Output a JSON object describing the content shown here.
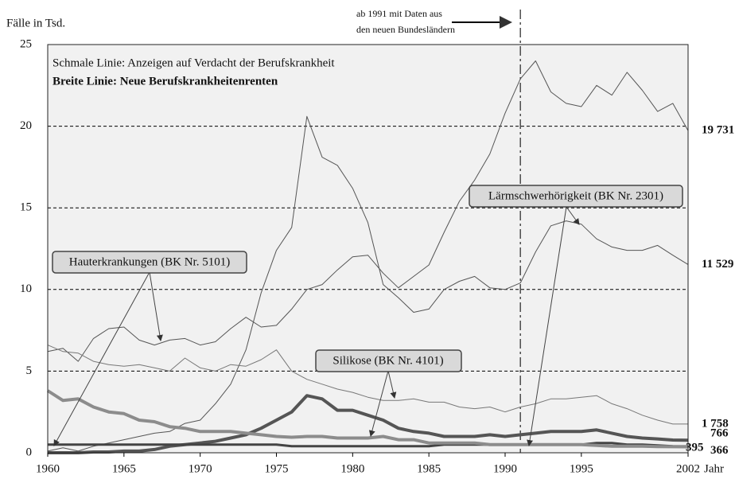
{
  "chart_data": {
    "type": "line",
    "y_label": "Fälle in Tsd.",
    "x_label": "Jahr",
    "legend_thin": "Schmale Linie: Anzeigen auf Verdacht der Berufskrankheit",
    "legend_thick": "Breite Linie: Neue Berufskrankheitenrenten",
    "note_line1": "ab 1991 mit Daten aus",
    "note_line2": "den neuen Bundesländern",
    "note_x": 1991,
    "annotations": [
      "Hauterkrankungen (BK Nr. 5101)",
      "Lärmschwerhörigkeit (BK Nr. 2301)",
      "Silikose (BK Nr. 4101)"
    ],
    "x": [
      1960,
      1961,
      1962,
      1963,
      1964,
      1965,
      1966,
      1967,
      1968,
      1969,
      1970,
      1971,
      1972,
      1973,
      1974,
      1975,
      1976,
      1977,
      1978,
      1979,
      1980,
      1981,
      1982,
      1983,
      1984,
      1985,
      1986,
      1987,
      1988,
      1989,
      1990,
      1991,
      1992,
      1993,
      1994,
      1995,
      1996,
      1997,
      1998,
      1999,
      2000,
      2001,
      2002
    ],
    "xlim": [
      1960,
      2002
    ],
    "xticks": [
      1960,
      1965,
      1970,
      1975,
      1980,
      1985,
      1990,
      1995,
      2002
    ],
    "ylim": [
      0,
      25
    ],
    "yticks": [
      0,
      5,
      10,
      15,
      20,
      25
    ],
    "grid": true,
    "series": [
      {
        "color": "#555555",
        "width": 1,
        "end_label": "19 731",
        "values": [
          6.2,
          6.4,
          5.6,
          7.0,
          7.6,
          7.7,
          6.9,
          6.6,
          6.9,
          7.0,
          6.6,
          6.8,
          7.6,
          8.3,
          7.7,
          7.8,
          8.8,
          10.0,
          10.3,
          11.2,
          12.0,
          12.1,
          11.0,
          10.1,
          10.8,
          11.5,
          13.5,
          15.4,
          16.7,
          18.3,
          20.8,
          22.9,
          24.0,
          22.1,
          21.4,
          21.2,
          22.5,
          21.9,
          23.3,
          22.2,
          20.9,
          21.4,
          19.731
        ]
      },
      {
        "color": "#555555",
        "width": 1,
        "end_label": "11 529",
        "values": [
          0.1,
          0.3,
          0.1,
          0.4,
          0.6,
          0.8,
          1.0,
          1.2,
          1.3,
          1.8,
          2.0,
          3.0,
          4.2,
          6.3,
          9.8,
          12.4,
          13.8,
          20.6,
          18.1,
          17.6,
          16.2,
          14.1,
          10.3,
          9.5,
          8.6,
          8.8,
          10.0,
          10.5,
          10.8,
          10.1,
          10.0,
          10.4,
          12.3,
          13.9,
          14.2,
          14.0,
          13.1,
          12.6,
          12.4,
          12.4,
          12.7,
          12.1,
          11.529
        ]
      },
      {
        "color": "#777777",
        "width": 1,
        "end_label": "1 758",
        "values": [
          6.6,
          6.2,
          6.1,
          5.6,
          5.4,
          5.3,
          5.4,
          5.2,
          5.0,
          5.8,
          5.2,
          5.0,
          5.4,
          5.3,
          5.7,
          6.3,
          5.0,
          4.5,
          4.2,
          3.9,
          3.7,
          3.4,
          3.2,
          3.2,
          3.3,
          3.1,
          3.1,
          2.8,
          2.7,
          2.8,
          2.5,
          2.8,
          3.0,
          3.3,
          3.3,
          3.4,
          3.5,
          3.0,
          2.7,
          2.3,
          2.0,
          1.76,
          1.758
        ]
      },
      {
        "color": "#555555",
        "width": 4,
        "end_label": "766",
        "values": [
          0,
          0,
          0,
          0.05,
          0.05,
          0.1,
          0.1,
          0.2,
          0.4,
          0.5,
          0.6,
          0.7,
          0.9,
          1.1,
          1.5,
          2.0,
          2.5,
          3.5,
          3.3,
          2.6,
          2.6,
          2.3,
          2.0,
          1.5,
          1.3,
          1.2,
          1.0,
          1.0,
          1.0,
          1.1,
          1.0,
          1.1,
          1.2,
          1.3,
          1.3,
          1.3,
          1.4,
          1.2,
          1.0,
          0.9,
          0.85,
          0.78,
          0.766
        ]
      },
      {
        "color": "#444444",
        "width": 3,
        "end_label": "395",
        "values": [
          0.5,
          0.5,
          0.5,
          0.5,
          0.5,
          0.5,
          0.5,
          0.5,
          0.5,
          0.5,
          0.5,
          0.5,
          0.5,
          0.5,
          0.5,
          0.5,
          0.4,
          0.4,
          0.4,
          0.4,
          0.4,
          0.4,
          0.4,
          0.4,
          0.4,
          0.4,
          0.5,
          0.5,
          0.5,
          0.5,
          0.5,
          0.5,
          0.5,
          0.5,
          0.5,
          0.5,
          0.6,
          0.6,
          0.5,
          0.5,
          0.45,
          0.4,
          0.395
        ]
      },
      {
        "color": "#8c8c8c",
        "width": 4,
        "end_label": "366",
        "values": [
          3.8,
          3.2,
          3.3,
          2.8,
          2.5,
          2.4,
          2.0,
          1.9,
          1.6,
          1.5,
          1.3,
          1.3,
          1.3,
          1.2,
          1.1,
          1.0,
          0.95,
          1.0,
          1.0,
          0.9,
          0.9,
          0.9,
          1.0,
          0.8,
          0.8,
          0.6,
          0.6,
          0.6,
          0.6,
          0.5,
          0.5,
          0.5,
          0.5,
          0.5,
          0.5,
          0.5,
          0.45,
          0.4,
          0.4,
          0.4,
          0.38,
          0.37,
          0.366
        ]
      }
    ]
  }
}
